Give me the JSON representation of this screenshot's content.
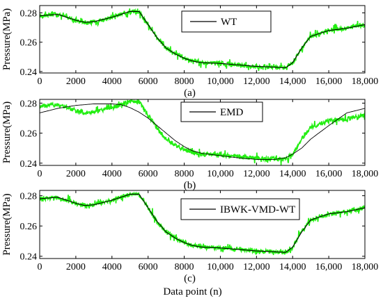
{
  "colors": {
    "raw": "#22ee11",
    "fit": "#000000",
    "axis": "#000000",
    "background": "#ffffff"
  },
  "xlabel": "Data point (n)",
  "chart_data": [
    {
      "type": "line",
      "panel_label": "(a)",
      "ylabel": "Pressure(MPa)",
      "xlim": [
        0,
        18000
      ],
      "ylim": [
        0.239,
        0.285
      ],
      "xticks": [
        "0",
        "2000",
        "4000",
        "6000",
        "8000",
        "10,000",
        "12,000",
        "14,000",
        "16,000",
        "18,000"
      ],
      "yticks": [
        "0.24",
        "0.26",
        "0.28"
      ],
      "legend_position": "top-right",
      "x": [
        0,
        500,
        1000,
        2000,
        2500,
        3000,
        4000,
        4500,
        5000,
        5500,
        6000,
        6500,
        7000,
        7500,
        8000,
        8500,
        9000,
        10000,
        11000,
        12000,
        13000,
        13600,
        14000,
        14500,
        15000,
        16000,
        17000,
        18000
      ],
      "series": [
        {
          "role": "raw",
          "values": [
            0.278,
            0.2785,
            0.279,
            0.275,
            0.2735,
            0.274,
            0.277,
            0.279,
            0.281,
            0.281,
            0.272,
            0.263,
            0.256,
            0.252,
            0.249,
            0.247,
            0.246,
            0.2455,
            0.2445,
            0.2435,
            0.243,
            0.2425,
            0.246,
            0.256,
            0.264,
            0.268,
            0.2695,
            0.272
          ]
        },
        {
          "role": "fit",
          "name": "WT",
          "values": [
            0.278,
            0.2785,
            0.279,
            0.275,
            0.2735,
            0.274,
            0.277,
            0.279,
            0.281,
            0.281,
            0.272,
            0.263,
            0.256,
            0.252,
            0.249,
            0.247,
            0.246,
            0.2455,
            0.2445,
            0.2435,
            0.243,
            0.2425,
            0.246,
            0.256,
            0.264,
            0.268,
            0.2695,
            0.272
          ]
        }
      ]
    },
    {
      "type": "line",
      "panel_label": "(b)",
      "ylabel": "Pressure(MPa)",
      "xlim": [
        0,
        18000
      ],
      "ylim": [
        0.2385,
        0.2825
      ],
      "xticks": [
        "0",
        "2000",
        "4000",
        "6000",
        "8000",
        "10,000",
        "12,000",
        "14,000",
        "16,000",
        "18,000"
      ],
      "yticks": [
        "0.24",
        "0.26",
        "0.28"
      ],
      "legend_position": "top-right",
      "x": [
        0,
        500,
        1000,
        2000,
        2500,
        3000,
        4000,
        4500,
        5000,
        5500,
        6000,
        6500,
        7000,
        7500,
        8000,
        8500,
        9000,
        10000,
        11000,
        12000,
        13000,
        13600,
        14000,
        14500,
        15000,
        16000,
        17000,
        18000
      ],
      "series": [
        {
          "role": "raw",
          "values": [
            0.278,
            0.2785,
            0.279,
            0.275,
            0.2735,
            0.274,
            0.277,
            0.279,
            0.281,
            0.281,
            0.272,
            0.263,
            0.256,
            0.252,
            0.249,
            0.247,
            0.246,
            0.2455,
            0.2445,
            0.2435,
            0.243,
            0.2425,
            0.246,
            0.256,
            0.264,
            0.268,
            0.2695,
            0.272
          ]
        },
        {
          "role": "fit",
          "name": "EMD",
          "values": [
            0.2735,
            0.275,
            0.2765,
            0.2785,
            0.279,
            0.2795,
            0.2795,
            0.279,
            0.277,
            0.274,
            0.27,
            0.265,
            0.26,
            0.255,
            0.251,
            0.248,
            0.2465,
            0.245,
            0.2435,
            0.2425,
            0.2425,
            0.2435,
            0.246,
            0.25,
            0.256,
            0.265,
            0.2735,
            0.2765
          ]
        }
      ]
    },
    {
      "type": "line",
      "panel_label": "(c)",
      "ylabel": "Pressure(MPa)",
      "xlim": [
        0,
        18000
      ],
      "ylim": [
        0.2385,
        0.2835
      ],
      "xticks": [
        "0",
        "2000",
        "4000",
        "6000",
        "8000",
        "10,000",
        "12,000",
        "14,000",
        "16,000",
        "18,000"
      ],
      "yticks": [
        "0.24",
        "0.26",
        "0.28"
      ],
      "legend_position": "top-right",
      "x": [
        0,
        500,
        1000,
        2000,
        2500,
        3000,
        4000,
        4500,
        5000,
        5500,
        6000,
        6500,
        7000,
        7500,
        8000,
        8500,
        9000,
        10000,
        11000,
        12000,
        13000,
        13600,
        14000,
        14500,
        15000,
        16000,
        17000,
        18000
      ],
      "series": [
        {
          "role": "raw",
          "values": [
            0.278,
            0.2785,
            0.279,
            0.275,
            0.2735,
            0.274,
            0.277,
            0.279,
            0.281,
            0.281,
            0.272,
            0.263,
            0.256,
            0.252,
            0.249,
            0.247,
            0.246,
            0.2455,
            0.2445,
            0.2435,
            0.243,
            0.2425,
            0.246,
            0.256,
            0.264,
            0.268,
            0.2695,
            0.272
          ]
        },
        {
          "role": "fit",
          "name": "IBWK-VMD-WT",
          "values": [
            0.278,
            0.2785,
            0.279,
            0.275,
            0.2735,
            0.274,
            0.277,
            0.279,
            0.281,
            0.281,
            0.272,
            0.263,
            0.256,
            0.252,
            0.249,
            0.247,
            0.246,
            0.2455,
            0.2445,
            0.2435,
            0.243,
            0.2425,
            0.246,
            0.256,
            0.264,
            0.268,
            0.2695,
            0.272
          ]
        }
      ]
    }
  ]
}
